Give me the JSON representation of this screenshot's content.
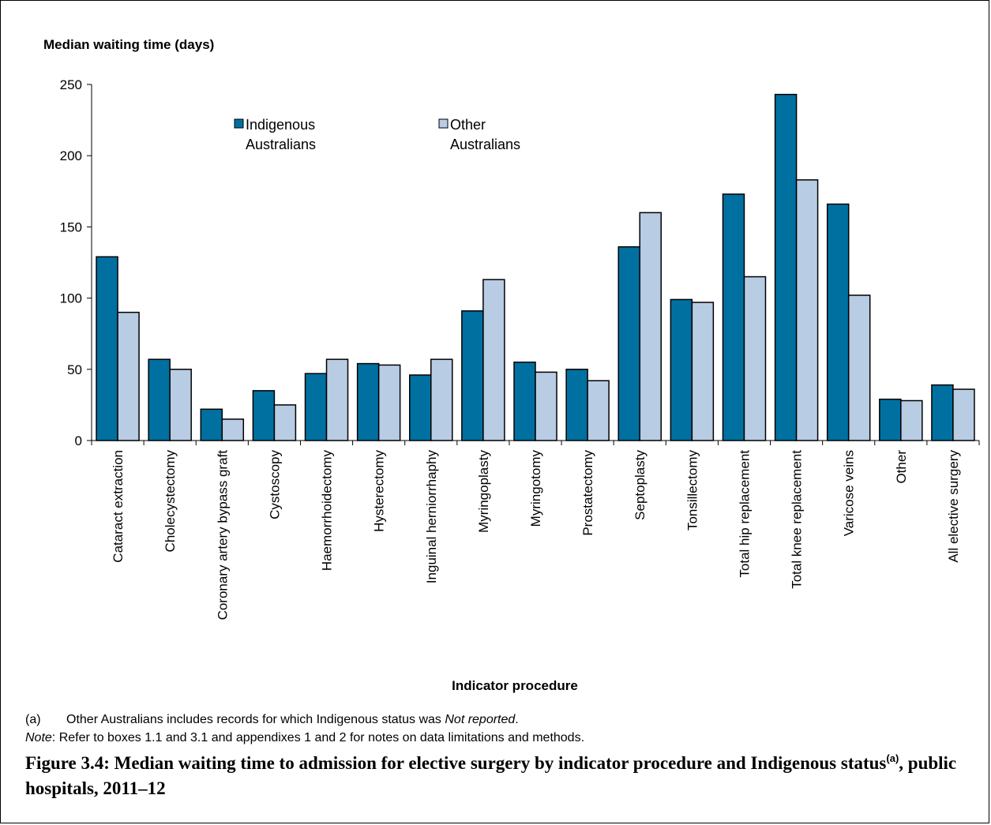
{
  "chart_data": {
    "type": "bar",
    "ylabel": "Median waiting time (days)",
    "xlabel": "Indicator procedure",
    "ylim": [
      0,
      250
    ],
    "yticks": [
      0,
      50,
      100,
      150,
      200,
      250
    ],
    "grid": false,
    "legend_position": "top-center",
    "categories": [
      "Cataract extraction",
      "Cholecystectomy",
      "Coronary artery bypass graft",
      "Cystoscopy",
      "Haemorrhoidectomy",
      "Hysterectomy",
      "Inguinal herniorrhaphy",
      "Myringoplasty",
      "Myringotomy",
      "Prostatectomy",
      "Septoplasty",
      "Tonsillectomy",
      "Total hip replacement",
      "Total knee replacement",
      "Varicose veins",
      "Other",
      "All elective surgery"
    ],
    "series": [
      {
        "name": "Indigenous Australians",
        "legend_lines": [
          "Indigenous",
          "Australians"
        ],
        "color": "#0070a0",
        "values": [
          129,
          57,
          22,
          35,
          47,
          54,
          46,
          91,
          55,
          50,
          136,
          99,
          173,
          243,
          166,
          29,
          39
        ]
      },
      {
        "name": "Other Australians",
        "legend_lines": [
          "Other",
          "Australians"
        ],
        "color": "#b8cce4",
        "values": [
          90,
          50,
          15,
          25,
          57,
          53,
          57,
          113,
          48,
          42,
          160,
          97,
          115,
          183,
          102,
          28,
          36
        ]
      }
    ]
  },
  "notes": {
    "a_mark": "(a)",
    "a_text": "Other Australians includes records for which Indigenous status was ",
    "a_italic": "Not reported",
    "a_end": ".",
    "note_label": "Note",
    "note_text": ": Refer to boxes 1.1 and 3.1 and appendixes 1 and 2 for notes on data limitations and methods."
  },
  "caption": {
    "text": "Figure 3.4: Median waiting time to admission for elective surgery by indicator procedure and Indigenous status",
    "sup": "(a)",
    "tail": ", public hospitals, 2011–12"
  }
}
